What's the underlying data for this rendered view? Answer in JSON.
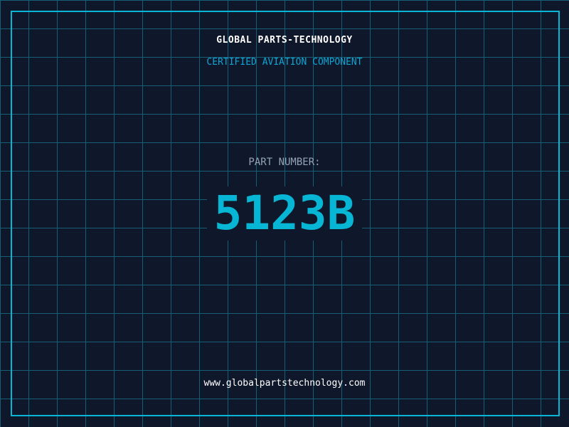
{
  "header": {
    "title": "GLOBAL PARTS-TECHNOLOGY",
    "subtitle": "CERTIFIED AVIATION COMPONENT"
  },
  "part": {
    "label": "PART NUMBER:",
    "number": "5123B"
  },
  "footer": {
    "url": "www.globalpartstechnology.com"
  },
  "colors": {
    "accent": "#06b6d4",
    "background": "#0f172a",
    "grid": "#155e75"
  }
}
